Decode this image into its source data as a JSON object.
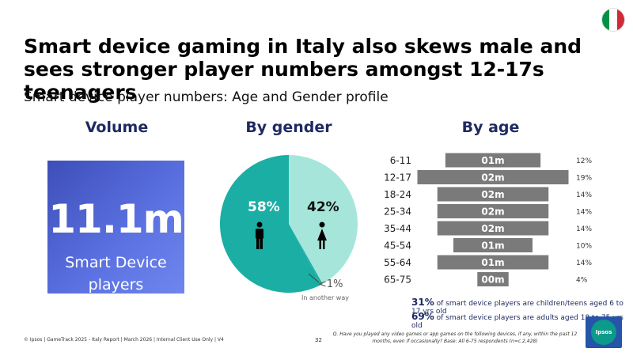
{
  "header": {
    "title": "Smart device gaming in Italy also skews male and sees stronger player numbers amongst 12-17s teenagers",
    "subtitle": "Smart device player numbers: Age and Gender profile"
  },
  "flag": {
    "colors": [
      "#009246",
      "#ffffff",
      "#ce2b37"
    ],
    "icon": "italy-flag-icon"
  },
  "volume": {
    "heading": "Volume",
    "value": "11.1m",
    "label_line1": "Smart Device",
    "label_line2": "players"
  },
  "gender": {
    "heading": "By gender",
    "male_pct": "58%",
    "female_pct": "42%",
    "other_pct": "<1%",
    "other_label": "In another way"
  },
  "age": {
    "heading": "By age"
  },
  "chart_data": [
    {
      "type": "pie",
      "title": "By gender",
      "labels": [
        "Male",
        "Female",
        "In another way"
      ],
      "values": [
        58,
        42,
        0.4
      ],
      "colors": [
        "#1aaea4",
        "#a6e6da",
        "#1aaea4"
      ]
    },
    {
      "type": "bar",
      "title": "By age",
      "orientation": "horizontal-centered",
      "categories": [
        "6-11",
        "12-17",
        "18-24",
        "25-34",
        "35-44",
        "45-54",
        "55-64",
        "65-75"
      ],
      "values": [
        12,
        19,
        14,
        14,
        14,
        10,
        14,
        4
      ],
      "value_labels": [
        "12%",
        "19%",
        "14%",
        "14%",
        "14%",
        "10%",
        "14%",
        "4%"
      ],
      "bar_labels": [
        "01m",
        "02m",
        "02m",
        "02m",
        "02m",
        "01m",
        "01m",
        "00m"
      ],
      "color": "#7a7a7a"
    }
  ],
  "notes": {
    "children_pct": "31%",
    "children_text": "of smart device players are children/teens aged 6 to 17 yrs old",
    "adults_pct": "69%",
    "adults_text": "of smart device players are adults aged 18 to 75 yrs old"
  },
  "footer": {
    "source": "© Ipsos | GameTrack 2025 - Italy Report | March 2026 | Internal Client Use Only | V4",
    "page": "32",
    "question": "Q. Have you played any video games or app games on the following devices, if any, within the past 12 months, even if occasionally? Base: All 6-75 respondents (n=c.2,428)",
    "logo_text": "Ipsos"
  }
}
